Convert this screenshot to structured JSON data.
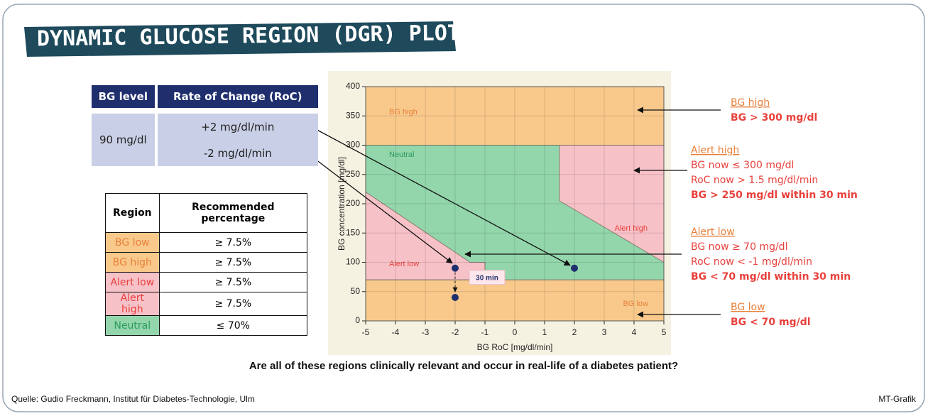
{
  "title": "DYNAMIC GLUCOSE REGION (DGR) PLOT",
  "input_table": {
    "headers": [
      "BG level",
      "Rate of Change (RoC)"
    ],
    "bg_level": "90 mg/dl",
    "roc": [
      "+2 mg/dl/min",
      "-2 mg/dl/min"
    ]
  },
  "region_table": {
    "headers": [
      "Region",
      "Recommended percentage"
    ],
    "rows": [
      [
        "BG low",
        "≥ 7.5%"
      ],
      [
        "BG high",
        "≥ 7.5%"
      ],
      [
        "Alert low",
        "≥ 7.5%"
      ],
      [
        "Alert high",
        "≥ 7.5%"
      ],
      [
        "Neutral",
        "≤ 70%"
      ]
    ]
  },
  "chart_data": {
    "type": "region",
    "xlabel": "BG RoC [mg/dl/min]",
    "ylabel": "BG concentration [mg/dl]",
    "xlim": [
      -5,
      5
    ],
    "ylim": [
      0,
      400
    ],
    "xticks": [
      -5,
      -4,
      -3,
      -2,
      -1,
      0,
      1,
      2,
      3,
      4,
      5
    ],
    "yticks": [
      0,
      50,
      100,
      150,
      200,
      250,
      300,
      350,
      400
    ],
    "grid": true,
    "regions": [
      {
        "name": "BG high",
        "color": "#f8c98b",
        "x": [
          -5,
          5,
          5,
          -5
        ],
        "y": [
          300,
          300,
          400,
          400
        ]
      },
      {
        "name": "BG low",
        "color": "#f8c98b",
        "x": [
          -5,
          5,
          5,
          -5
        ],
        "y": [
          0,
          0,
          70,
          70
        ]
      },
      {
        "name": "Neutral",
        "color": "#93d6ab",
        "x": [
          -5,
          5,
          5,
          -5
        ],
        "y": [
          70,
          70,
          300,
          300
        ]
      },
      {
        "name": "Alert low",
        "color": "#f7c1c8",
        "x": [
          -5,
          -5,
          -1.5,
          -1,
          -1
        ],
        "y": [
          70,
          220,
          100,
          100,
          70
        ]
      },
      {
        "name": "Alert high",
        "color": "#f7c1c8",
        "x": [
          1.5,
          5,
          5,
          1.5
        ],
        "y": [
          300,
          300,
          100,
          205
        ]
      }
    ],
    "points": {
      "x": [
        2,
        -2,
        -2
      ],
      "y": [
        90,
        90,
        40
      ],
      "color": "#1f2f6e"
    },
    "annotation": "30 min"
  },
  "callouts": [
    {
      "title": "BG high",
      "lines": [],
      "conclusion": "BG > 300 mg/dl"
    },
    {
      "title": "Alert high",
      "lines": [
        "BG now  ≤ 300 mg/dl",
        "RoC now > 1.5 mg/dl/min"
      ],
      "conclusion": "BG > 250 mg/dl within 30 min"
    },
    {
      "title": "Alert low",
      "lines": [
        "BG now  ≥ 70 mg/dl",
        "RoC now < -1 mg/dl/min"
      ],
      "conclusion": "BG < 70 mg/dl within 30 min"
    },
    {
      "title": "BG low",
      "lines": [],
      "conclusion": "BG < 70 mg/dl"
    }
  ],
  "question": "Are all of these regions clinically relevant and occur in real-life of a diabetes patient?",
  "source": "Quelle: Gudio Freckmann, Institut für Diabetes-Technologie, Ulm",
  "credit": "MT-Grafik"
}
